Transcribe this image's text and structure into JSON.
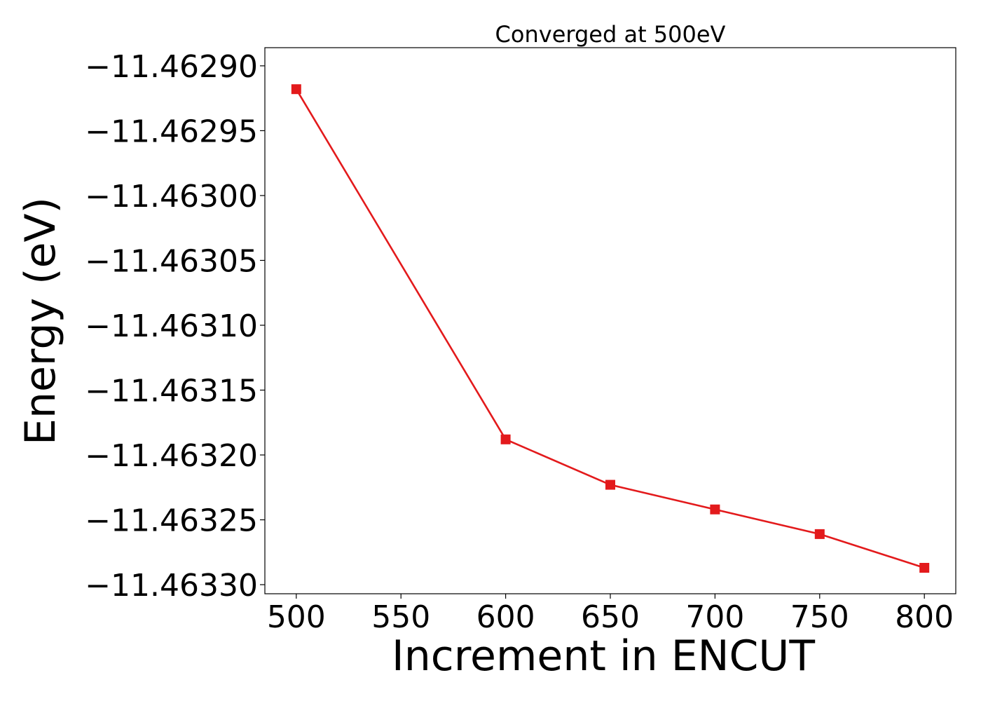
{
  "chart_data": {
    "type": "line",
    "title": "Converged at 500eV",
    "xlabel": "Increment in ENCUT",
    "ylabel": "Energy (eV)",
    "x": [
      500,
      600,
      650,
      700,
      750,
      800
    ],
    "series": [
      {
        "values": [
          -11.462918,
          -11.463188,
          -11.463223,
          -11.463242,
          -11.463261,
          -11.463287
        ],
        "color": "#e31a1c",
        "marker": "square"
      }
    ],
    "xlim": [
      485,
      815
    ],
    "ylim": [
      -11.463307,
      -11.462886
    ],
    "xticks": [
      500,
      550,
      600,
      650,
      700,
      750,
      800
    ],
    "xtick_labels": [
      "500",
      "550",
      "600",
      "650",
      "700",
      "750",
      "800"
    ],
    "yticks": [
      -11.4629,
      -11.46295,
      -11.463,
      -11.46305,
      -11.4631,
      -11.46315,
      -11.4632,
      -11.46325,
      -11.4633
    ],
    "ytick_labels": [
      "−11.46290",
      "−11.46295",
      "−11.46300",
      "−11.46305",
      "−11.46310",
      "−11.46315",
      "−11.46320",
      "−11.46325",
      "−11.46330"
    ],
    "grid": false,
    "legend": "none"
  }
}
